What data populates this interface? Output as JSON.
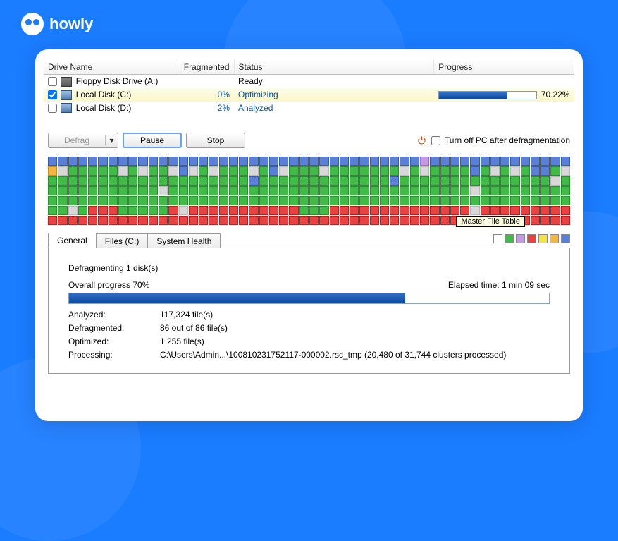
{
  "brand": "howly",
  "table": {
    "headers": {
      "name": "Drive Name",
      "frag": "Fragmented",
      "status": "Status",
      "progress": "Progress"
    },
    "rows": [
      {
        "checked": false,
        "name": "Floppy Disk Drive (A:)",
        "frag": "",
        "status": "Ready",
        "status_link": false,
        "icon": "floppy",
        "progress_pct": null,
        "progress_label": ""
      },
      {
        "checked": true,
        "name": "Local Disk (C:)",
        "frag": "0%",
        "status": "Optimizing",
        "status_link": true,
        "icon": "hdd",
        "selected": true,
        "progress_pct": 70.22,
        "progress_label": "70.22%"
      },
      {
        "checked": false,
        "name": "Local Disk (D:)",
        "frag": "2%",
        "status": "Analyzed",
        "status_link": true,
        "icon": "hdd",
        "progress_pct": null,
        "progress_label": ""
      }
    ]
  },
  "controls": {
    "defrag": "Defrag",
    "pause": "Pause",
    "stop": "Stop",
    "turn_off": "Turn off PC after defragmentation"
  },
  "defrag_map": {
    "cols": 52,
    "rows": 7,
    "tooltip": "Master File Table",
    "palette": {
      "b": "#5a7fd6",
      "g": "#3fbb46",
      "r": "#e84242",
      "lg": "#d8d8d8",
      "p": "#c498e6",
      "o": "#f4b642",
      "y": "#f4e342"
    },
    "legend": [
      "#ffffff",
      "#3fbb46",
      "#c498e6",
      "#e84242",
      "#f4e342",
      "#f4b642",
      "#5a7fd6"
    ],
    "pattern": [
      "bbbbbbbbbbbbbbbbbbbbbbbbbbbbbbbbbbbbbpbbbbbbbbbbbbbb",
      "oLgggggLgLggLbLgLgggLgbLgggLgggggggLgLggggbgLgLgbbgL",
      "ggggggggggggggggggggbgggggggggggggbgggggggggggggggLg",
      "gggggggggggLggggggggggggggggggggggggggggggLggggggggg",
      "gggggggggggggggggggggggggggggggggggggggggggggggggggg",
      "ggLgrrrgggggrLrrrrrrrrrrrgggrrrrrrrrrrrrrrLrrrrrrrrr",
      "rrrrrrrrrrrrrrrrrrrrrrrrrrrrrrrrrrrrrrrrrrrrrrrrrrrr"
    ]
  },
  "tabs": {
    "general": "General",
    "files": "Files (C:)",
    "health": "System Health"
  },
  "panel": {
    "line1": "Defragmenting 1 disk(s)",
    "overall": "Overall progress 70%",
    "elapsed": "Elapsed time: 1 min 09 sec",
    "big_progress_pct": 70,
    "stats": [
      {
        "k": "Analyzed:",
        "v": "117,324 file(s)"
      },
      {
        "k": "Defragmented:",
        "v": "86 out of 86 file(s)"
      },
      {
        "k": "Optimized:",
        "v": "1,255 file(s)"
      },
      {
        "k": "Processing:",
        "v": "C:\\Users\\Admin...\\100810231752117-000002.rsc_tmp (20,480 of 31,744 clusters processed)"
      }
    ]
  }
}
